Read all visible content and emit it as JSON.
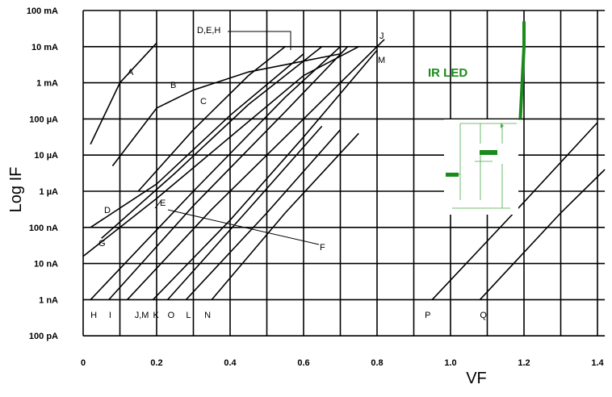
{
  "chart_data": {
    "type": "line",
    "title": "",
    "xlabel": "VF",
    "ylabel": "Log IF",
    "xlim": [
      0,
      1.4
    ],
    "ylim": [
      "100 pA",
      "100 mA"
    ],
    "yscale": "log",
    "grid": true,
    "x_ticks": [
      "0",
      "0.2",
      "0.4",
      "0.6",
      "0.8",
      "1.0",
      "1.2",
      "1.4"
    ],
    "y_ticks": [
      "100 mA",
      "10 mA",
      "1 mA",
      "100 µA",
      "10 µA",
      "1 µA",
      "100 nA",
      "10 nA",
      "1 nA",
      "100 pA"
    ],
    "bottom_labels": [
      "H",
      "I",
      "J,M",
      "K",
      "O",
      "L",
      "N",
      "P",
      "Q"
    ],
    "curve_labels": [
      "A",
      "B",
      "C",
      "D,E,H",
      "J",
      "M",
      "D",
      "E",
      "F",
      "G"
    ],
    "annotation": {
      "text": "IR LED",
      "color": "#1a8a1a"
    },
    "series": [
      {
        "name": "A",
        "x": [
          0.02,
          0.1,
          0.2
        ],
        "y_log10A": [
          -4.7,
          -3.0,
          -1.9
        ]
      },
      {
        "name": "B",
        "x": [
          0.08,
          0.2,
          0.3,
          0.45,
          0.7
        ],
        "y_log10A": [
          -5.3,
          -3.7,
          -3.2,
          -2.7,
          -2.2
        ]
      },
      {
        "name": "C",
        "x": [
          0.15,
          0.3,
          0.45,
          0.55
        ],
        "y_log10A": [
          -6.0,
          -4.3,
          -2.8,
          -2.0
        ]
      },
      {
        "name": "D",
        "x": [
          0.02,
          0.2,
          0.4,
          0.6
        ],
        "y_log10A": [
          -7.0,
          -5.8,
          -3.9,
          -2.2
        ]
      },
      {
        "name": "E",
        "x": [
          0.05,
          0.25,
          0.45,
          0.65
        ],
        "y_log10A": [
          -7.3,
          -5.5,
          -3.6,
          -2.0
        ]
      },
      {
        "name": "G",
        "x": [
          0.0,
          0.2,
          0.4,
          0.6,
          0.75
        ],
        "y_log10A": [
          -7.8,
          -6.2,
          -4.5,
          -2.8,
          -2.0
        ]
      },
      {
        "name": "H",
        "x": [
          0.02,
          0.3,
          0.55,
          0.7
        ],
        "y_log10A": [
          -9.0,
          -6.0,
          -3.4,
          -2.0
        ]
      },
      {
        "name": "I",
        "x": [
          0.07,
          0.3,
          0.55,
          0.72
        ],
        "y_log10A": [
          -9.0,
          -6.4,
          -3.8,
          -2.0
        ]
      },
      {
        "name": "J,M",
        "x": [
          0.12,
          0.35,
          0.6,
          0.82
        ],
        "y_log10A": [
          -9.0,
          -6.5,
          -4.0,
          -1.8
        ]
      },
      {
        "name": "K",
        "x": [
          0.19,
          0.4,
          0.6,
          0.8
        ],
        "y_log10A": [
          -9.0,
          -6.8,
          -4.5,
          -2.1
        ]
      },
      {
        "name": "O",
        "x": [
          0.23,
          0.45,
          0.65
        ],
        "y_log10A": [
          -9.0,
          -6.5,
          -4.2
        ]
      },
      {
        "name": "L",
        "x": [
          0.28,
          0.5,
          0.7
        ],
        "y_log10A": [
          -9.0,
          -6.6,
          -4.3
        ]
      },
      {
        "name": "N",
        "x": [
          0.35,
          0.55,
          0.75
        ],
        "y_log10A": [
          -9.0,
          -6.6,
          -4.4
        ]
      },
      {
        "name": "P",
        "x": [
          0.95,
          1.2,
          1.4
        ],
        "y_log10A": [
          -9.0,
          -6.3,
          -4.1
        ]
      },
      {
        "name": "Q",
        "x": [
          1.08,
          1.3,
          1.42
        ],
        "y_log10A": [
          -9.0,
          -6.6,
          -5.4
        ]
      },
      {
        "name": "IR LED",
        "x": [
          1.19,
          1.2,
          1.2
        ],
        "y_log10A": [
          -4.0,
          -2.0,
          -1.3
        ],
        "color": "#1a8a1a"
      }
    ]
  }
}
